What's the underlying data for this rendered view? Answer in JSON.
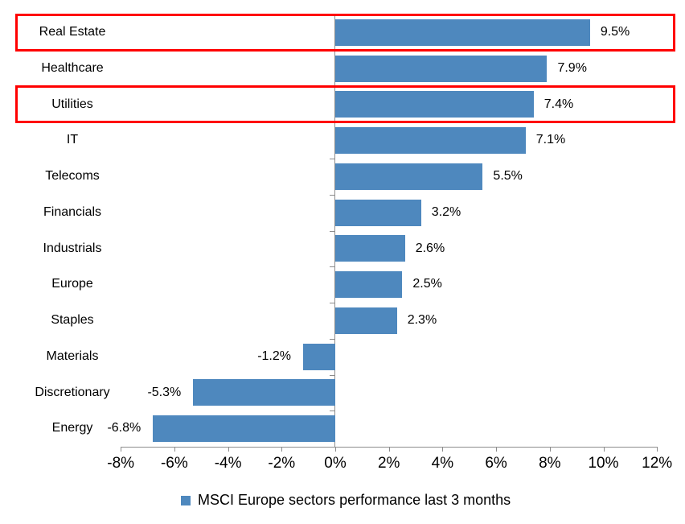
{
  "chart_data": {
    "type": "bar",
    "orientation": "horizontal",
    "categories": [
      "Real Estate",
      "Healthcare",
      "Utilities",
      "IT",
      "Telecoms",
      "Financials",
      "Industrials",
      "Europe",
      "Staples",
      "Materials",
      "Discretionary",
      "Energy"
    ],
    "values": [
      9.5,
      7.9,
      7.4,
      7.1,
      5.5,
      3.2,
      2.6,
      2.5,
      2.3,
      -1.2,
      -5.3,
      -6.8
    ],
    "value_labels": [
      "9.5%",
      "7.9%",
      "7.4%",
      "7.1%",
      "5.5%",
      "3.2%",
      "2.6%",
      "2.5%",
      "2.3%",
      "-1.2%",
      "-5.3%",
      "-6.8%"
    ],
    "x_axis": {
      "tick_labels": [
        "-8%",
        "-6%",
        "-4%",
        "-2%",
        "0%",
        "2%",
        "4%",
        "6%",
        "8%",
        "10%",
        "12%"
      ],
      "tick_values": [
        -8,
        -6,
        -4,
        -2,
        0,
        2,
        4,
        6,
        8,
        10,
        12
      ],
      "min": -8,
      "max": 12,
      "unit": "%"
    },
    "legend": {
      "label": "MSCI Europe sectors performance last 3 months",
      "position": "bottom"
    },
    "bar_color": "#4E88BE",
    "axis_color": "#8C8C8C",
    "highlight": {
      "box_color": "#FF0000",
      "highlighted_categories": [
        "Real Estate",
        "Utilities"
      ]
    },
    "grid": "off",
    "title": ""
  }
}
